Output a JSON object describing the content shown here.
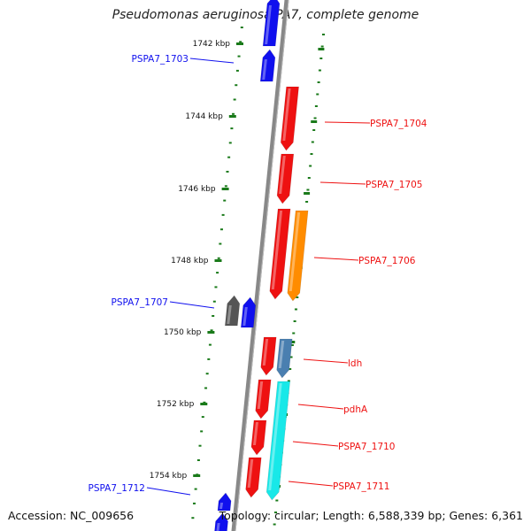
{
  "title": "Pseudomonas aeruginosa PA7, complete genome",
  "accession_text": "Accession: NC_009656",
  "topology_text": "Topology: circular; Length: 6,588,339 bp; Genes: 6,361",
  "colors": {
    "blue": "#1010ee",
    "red": "#ee1111",
    "orange": "#ff8c00",
    "gray": "#555555",
    "steelblue": "#4a7fb0",
    "cyan": "#18e8e8",
    "tick_green": "#1a7a1a",
    "backbone": "#888888"
  },
  "scale_labels": [
    "1742 kbp",
    "1744 kbp",
    "1746 kbp",
    "1748 kbp",
    "1750 kbp",
    "1752 kbp",
    "1754 kbp"
  ],
  "gene_labels": [
    {
      "text": "PSPA7_1703",
      "color": "blue"
    },
    {
      "text": "PSPA7_1704",
      "color": "red"
    },
    {
      "text": "PSPA7_1705",
      "color": "red"
    },
    {
      "text": "PSPA7_1706",
      "color": "red"
    },
    {
      "text": "PSPA7_1707",
      "color": "blue"
    },
    {
      "text": "ldh",
      "color": "red"
    },
    {
      "text": "pdhA",
      "color": "red"
    },
    {
      "text": "PSPA7_1710",
      "color": "red"
    },
    {
      "text": "PSPA7_1711",
      "color": "red"
    },
    {
      "text": "PSPA7_1712",
      "color": "blue"
    }
  ],
  "genes": [
    {
      "color": "blue",
      "strand": "+"
    },
    {
      "color": "blue",
      "strand": "+"
    },
    {
      "color": "red",
      "strand": "-"
    },
    {
      "color": "red",
      "strand": "-"
    },
    {
      "color": "red",
      "strand": "-"
    },
    {
      "color": "orange",
      "strand": "-"
    },
    {
      "color": "gray",
      "strand": "+"
    },
    {
      "color": "blue",
      "strand": "+"
    },
    {
      "color": "red",
      "strand": "-"
    },
    {
      "color": "steelblue",
      "strand": "-"
    },
    {
      "color": "red",
      "strand": "-"
    },
    {
      "color": "cyan",
      "strand": "-"
    },
    {
      "color": "red",
      "strand": "-"
    },
    {
      "color": "red",
      "strand": "-"
    },
    {
      "color": "blue",
      "strand": "+"
    },
    {
      "color": "blue",
      "strand": "+"
    }
  ]
}
